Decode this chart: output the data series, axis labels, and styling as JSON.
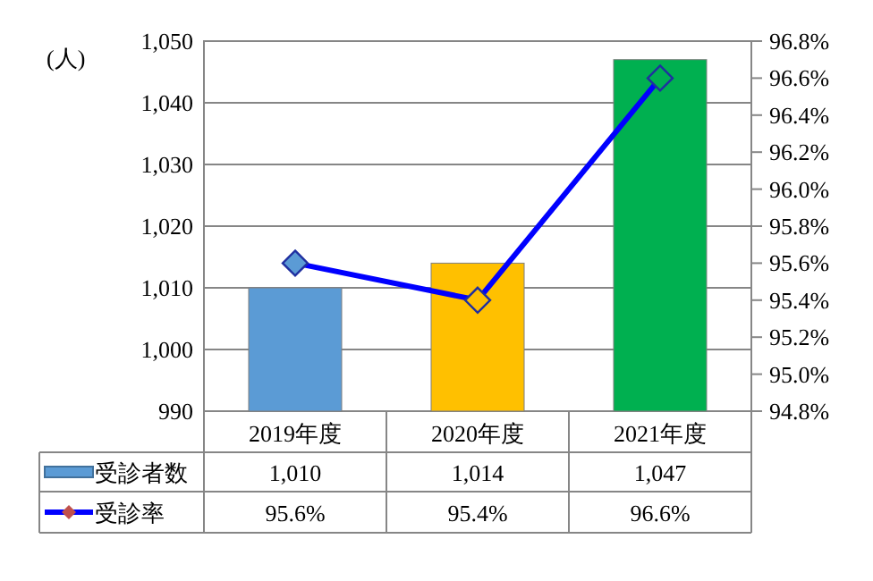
{
  "chart_data": {
    "type": "bar",
    "ylabel": "(人)",
    "categories": [
      "2019年度",
      "2020年度",
      "2021年度"
    ],
    "series": [
      {
        "name": "受診者数",
        "color": "#5b9bd5",
        "colors": [
          "#5b9bd5",
          "#ffc000",
          "#00b050"
        ],
        "values": [
          1010,
          1014,
          1047
        ],
        "value_labels": [
          "1,010",
          "1,014",
          "1,047"
        ]
      },
      {
        "name": "受診率",
        "type": "line",
        "axis": "y2",
        "color": "#0000ff",
        "marker": "diamond",
        "values": [
          95.6,
          95.4,
          96.6
        ],
        "value_labels": [
          "95.6%",
          "95.4%",
          "96.6%"
        ]
      }
    ],
    "ylim": [
      990,
      1050
    ],
    "yticks": [
      {
        "value": 990,
        "label": "990"
      },
      {
        "value": 1000,
        "label": "1,000"
      },
      {
        "value": 1010,
        "label": "1,010"
      },
      {
        "value": 1020,
        "label": "1,020"
      },
      {
        "value": 1030,
        "label": "1,030"
      },
      {
        "value": 1040,
        "label": "1,040"
      },
      {
        "value": 1050,
        "label": "1,050"
      }
    ],
    "y2lim": [
      94.8,
      96.8
    ],
    "y2ticks": [
      {
        "value": 94.8,
        "label": "94.8%"
      },
      {
        "value": 95.0,
        "label": "95.0%"
      },
      {
        "value": 95.2,
        "label": "95.2%"
      },
      {
        "value": 95.4,
        "label": "95.4%"
      },
      {
        "value": 95.6,
        "label": "95.6%"
      },
      {
        "value": 95.8,
        "label": "95.8%"
      },
      {
        "value": 96.0,
        "label": "96.0%"
      },
      {
        "value": 96.2,
        "label": "96.2%"
      },
      {
        "value": 96.4,
        "label": "96.4%"
      },
      {
        "value": 96.6,
        "label": "96.6%"
      },
      {
        "value": 96.8,
        "label": "96.8%"
      }
    ],
    "grid": "y",
    "legend": "bottom left"
  }
}
